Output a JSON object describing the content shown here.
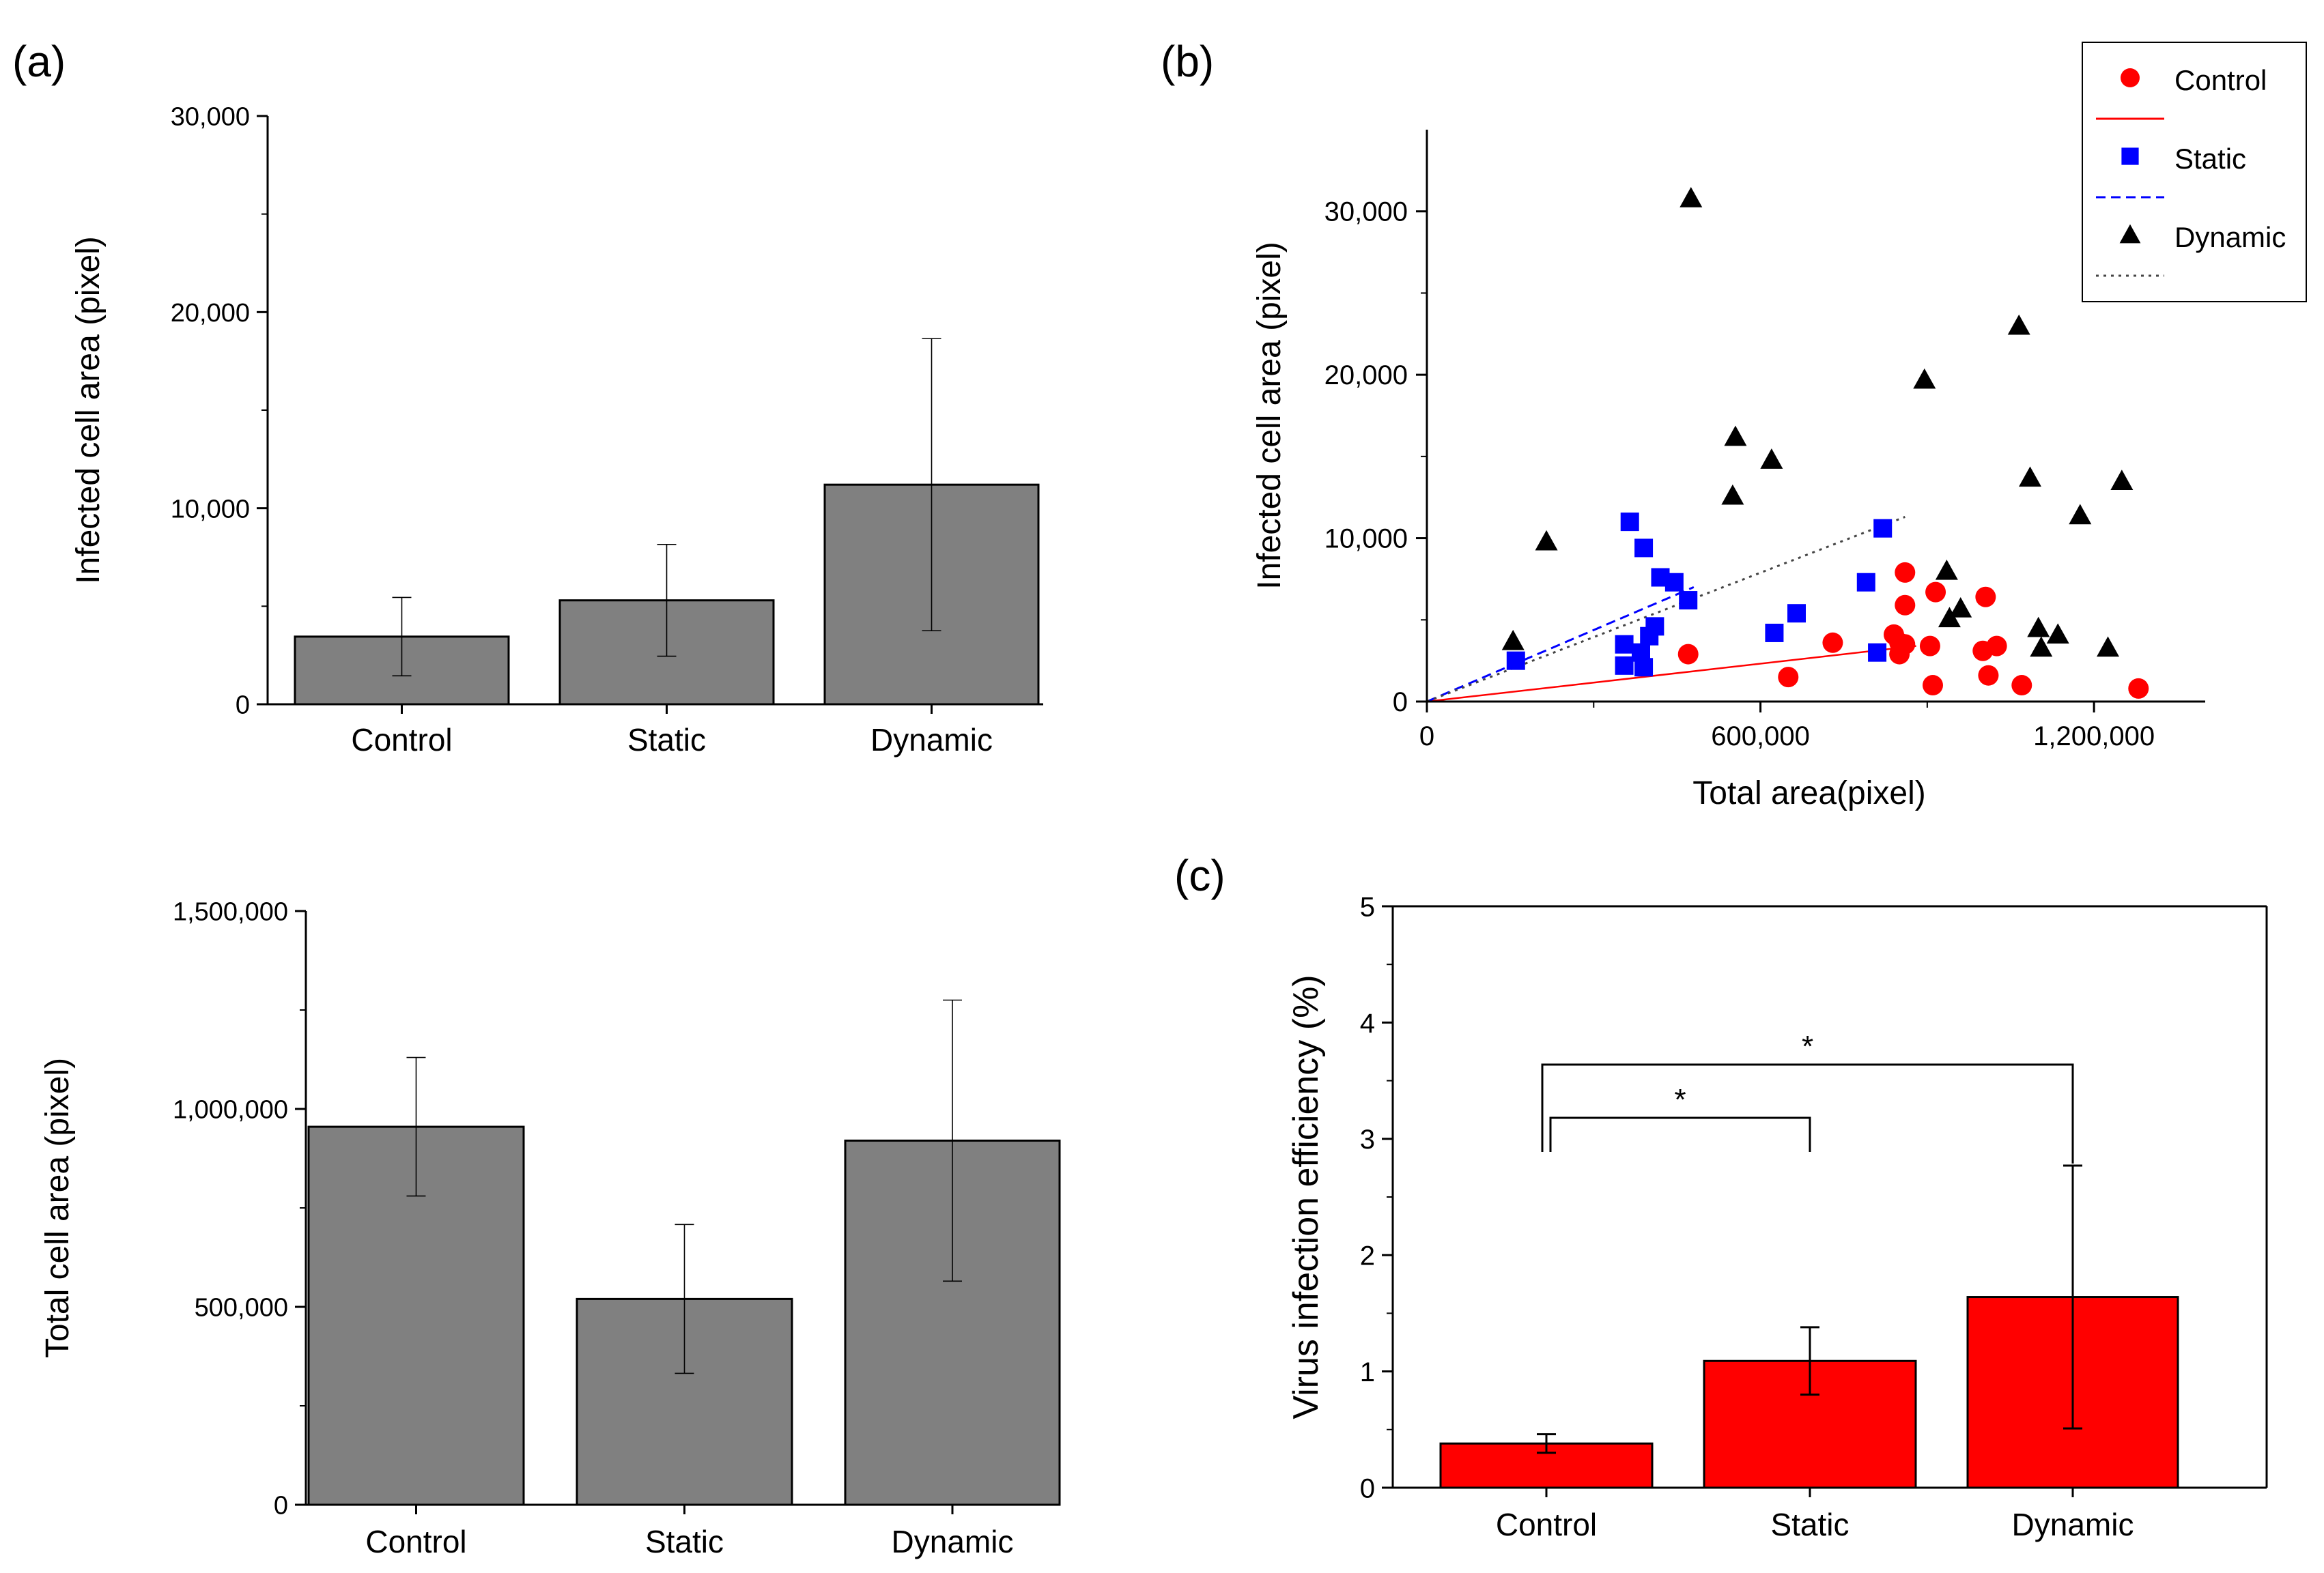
{
  "chart_data": [
    {
      "panel": "(a)",
      "type": "bar",
      "categories": [
        "Control",
        "Static",
        "Dynamic"
      ],
      "values": [
        3450,
        5300,
        11200
      ],
      "errors": [
        2000,
        2850,
        7450
      ],
      "ylabel": "Infected cell area (pixel)",
      "ylim": [
        0,
        30000
      ],
      "yticks": [
        "0",
        "10,000",
        "20,000",
        "30,000"
      ],
      "bar_color": "#808080"
    },
    {
      "type": "bar",
      "categories": [
        "Control",
        "Static",
        "Dynamic"
      ],
      "values": [
        955000,
        520000,
        920000
      ],
      "errors": [
        175000,
        188000,
        355000
      ],
      "ylabel": "Total cell area (pixel)",
      "ylim": [
        0,
        1500000
      ],
      "yticks": [
        "0",
        "500,000",
        "1,000,000",
        "1,500,000"
      ],
      "bar_color": "#808080"
    },
    {
      "panel": "(b)",
      "type": "scatter",
      "xlabel": "Total area(pixel)",
      "ylabel": "Infected cell area (pixel)",
      "xlim": [
        0,
        1400000
      ],
      "ylim": [
        0,
        35000
      ],
      "xticks": [
        "0",
        "600,000",
        "1,200,000"
      ],
      "yticks": [
        "0",
        "10,000",
        "20,000",
        "30,000"
      ],
      "legend_position": "top-right",
      "series": [
        {
          "name": "Control",
          "marker": "circle",
          "color": "#ff0000",
          "line_style": "solid",
          "fit_line": [
            [
              0,
              0
            ],
            [
              880000,
              3400
            ]
          ],
          "points": [
            [
              470000,
              2900
            ],
            [
              650000,
              1500
            ],
            [
              730000,
              3600
            ],
            [
              840000,
              4100
            ],
            [
              850000,
              3600
            ],
            [
              850000,
              2900
            ],
            [
              860000,
              7900
            ],
            [
              860000,
              5900
            ],
            [
              860000,
              3500
            ],
            [
              905000,
              3400
            ],
            [
              910000,
              1000
            ],
            [
              915000,
              6700
            ],
            [
              1000000,
              3100
            ],
            [
              1005000,
              6400
            ],
            [
              1010000,
              1600
            ],
            [
              1025000,
              3400
            ],
            [
              1070000,
              1000
            ],
            [
              1280000,
              800
            ]
          ]
        },
        {
          "name": "Static",
          "marker": "square",
          "color": "#0000ff",
          "line_style": "dashed",
          "fit_line": [
            [
              0,
              0
            ],
            [
              480000,
              7000
            ]
          ],
          "points": [
            [
              160000,
              2500
            ],
            [
              355000,
              2200
            ],
            [
              355000,
              3500
            ],
            [
              365000,
              11000
            ],
            [
              385000,
              3000
            ],
            [
              390000,
              2100
            ],
            [
              390000,
              9400
            ],
            [
              400000,
              4000
            ],
            [
              410000,
              4600
            ],
            [
              420000,
              7600
            ],
            [
              445000,
              7300
            ],
            [
              470000,
              6200
            ],
            [
              625000,
              4200
            ],
            [
              665000,
              5400
            ],
            [
              790000,
              7300
            ],
            [
              810000,
              3000
            ],
            [
              820000,
              10600
            ]
          ]
        },
        {
          "name": "Dynamic",
          "marker": "triangle",
          "color": "#000000",
          "line_style": "dotted",
          "fit_line": [
            [
              0,
              0
            ],
            [
              860000,
              11300
            ]
          ],
          "points": [
            [
              155000,
              3700
            ],
            [
              215000,
              9800
            ],
            [
              475000,
              30800
            ],
            [
              550000,
              12600
            ],
            [
              555000,
              16200
            ],
            [
              620000,
              14800
            ],
            [
              895000,
              19700
            ],
            [
              935000,
              8000
            ],
            [
              940000,
              5100
            ],
            [
              960000,
              5700
            ],
            [
              1065000,
              23000
            ],
            [
              1085000,
              13700
            ],
            [
              1100000,
              4500
            ],
            [
              1105000,
              3300
            ],
            [
              1135000,
              4100
            ],
            [
              1175000,
              11400
            ],
            [
              1225000,
              3300
            ],
            [
              1250000,
              13500
            ]
          ]
        }
      ]
    },
    {
      "panel": "(c)",
      "type": "bar",
      "categories": [
        "Control",
        "Static",
        "Dynamic"
      ],
      "values": [
        0.38,
        1.09,
        1.64
      ],
      "errors": [
        0.08,
        0.29,
        1.13
      ],
      "ylabel": "Virus infection efficiency (%)",
      "ylim": [
        0,
        5
      ],
      "yticks": [
        "0",
        "1",
        "2",
        "3",
        "4",
        "5"
      ],
      "bar_color": "#ff0000",
      "significance": [
        {
          "from": "Control",
          "to": "Static",
          "label": "*"
        },
        {
          "from": "Control",
          "to": "Dynamic",
          "label": "*"
        }
      ]
    }
  ]
}
